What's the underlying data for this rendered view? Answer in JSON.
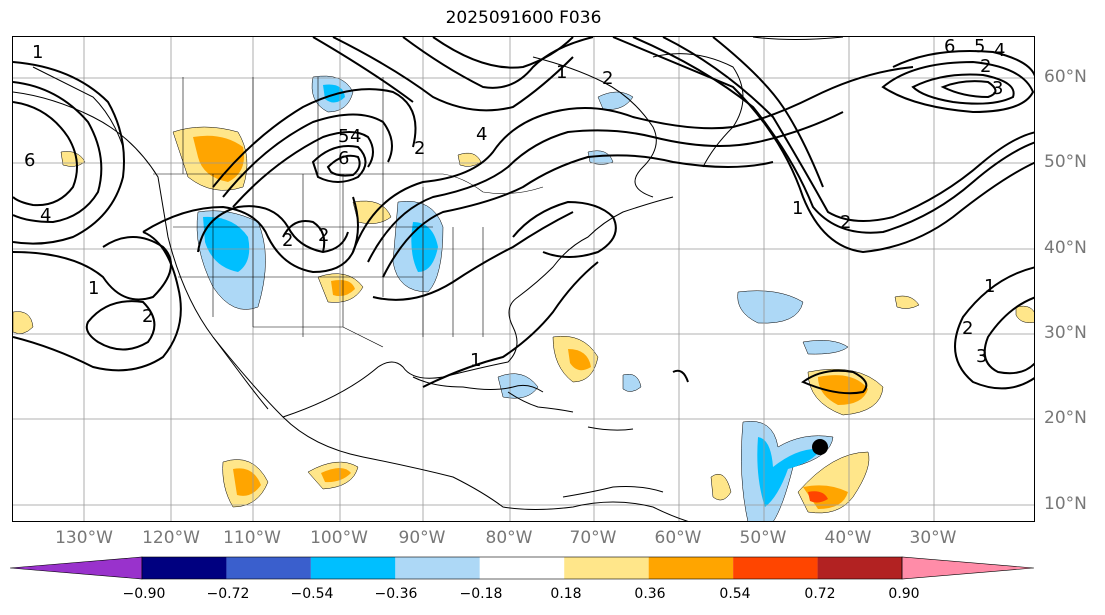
{
  "title": "2025091600 F036",
  "lon_labels": [
    "130°W",
    "120°W",
    "110°W",
    "100°W",
    "90°W",
    "80°W",
    "70°W",
    "60°W",
    "50°W",
    "40°W",
    "30°W"
  ],
  "lat_labels": [
    "60°N",
    "50°N",
    "40°N",
    "30°N",
    "20°N",
    "10°N"
  ],
  "contour_labels": [
    "1",
    "6",
    "4",
    "2",
    "1",
    "2",
    "6",
    "5",
    "4",
    "2",
    "1",
    "2",
    "4",
    "2",
    "6",
    "5",
    "4",
    "1",
    "2",
    "3",
    "2",
    "1",
    "2",
    "3",
    "1"
  ],
  "colorbar": {
    "ticks": [
      "−0.90",
      "−0.72",
      "−0.54",
      "−0.36",
      "−0.18",
      "0.18",
      "0.36",
      "0.54",
      "0.72",
      "0.90"
    ],
    "colors": [
      "#9932cc",
      "#000080",
      "#3a5fcd",
      "#00bfff",
      "#add8f6",
      "#ffffff",
      "#ffe68a",
      "#ffa500",
      "#ff4500",
      "#b22222",
      "#ff8ca8"
    ]
  },
  "colors": {
    "grid": "#888888",
    "coast": "#000000",
    "contour": "#000000",
    "marker": "#000000"
  }
}
